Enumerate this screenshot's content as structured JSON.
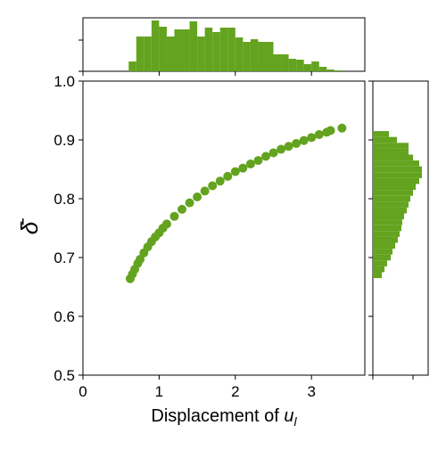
{
  "chart_data": [
    {
      "type": "scatter",
      "color": "#63a31f",
      "xlabel": "Displacement of ",
      "xlabel_var": "u",
      "xlabel_sub": "l",
      "ylabel": "δ̄",
      "x": [
        0.62,
        0.65,
        0.68,
        0.72,
        0.75,
        0.8,
        0.85,
        0.9,
        0.95,
        1.0,
        1.05,
        1.1,
        1.2,
        1.3,
        1.4,
        1.5,
        1.6,
        1.7,
        1.8,
        1.9,
        2.0,
        2.1,
        2.2,
        2.3,
        2.4,
        2.5,
        2.6,
        2.7,
        2.8,
        2.9,
        3.0,
        3.1,
        3.2,
        3.25,
        3.4
      ],
      "y": [
        0.664,
        0.672,
        0.68,
        0.69,
        0.697,
        0.708,
        0.718,
        0.727,
        0.735,
        0.742,
        0.75,
        0.757,
        0.77,
        0.782,
        0.793,
        0.803,
        0.813,
        0.822,
        0.83,
        0.838,
        0.846,
        0.852,
        0.859,
        0.865,
        0.872,
        0.878,
        0.884,
        0.889,
        0.894,
        0.899,
        0.904,
        0.909,
        0.913,
        0.916,
        0.92
      ],
      "xlim": [
        0,
        3.7
      ],
      "xticks": [
        0,
        1,
        2,
        3
      ],
      "ylim": [
        0.5,
        1.0
      ],
      "yticks": [
        0.5,
        0.6,
        0.7,
        0.8,
        0.9,
        {
          "value": 1.0,
          "label": "1.0"
        }
      ]
    },
    {
      "type": "histogram",
      "orientation": "vertical",
      "color": "#63a31f",
      "bins": [
        0.6,
        0.7,
        0.8,
        0.9,
        1.0,
        1.1,
        1.2,
        1.3,
        1.4,
        1.5,
        1.6,
        1.7,
        1.8,
        1.9,
        2.0,
        2.1,
        2.2,
        2.3,
        2.4,
        2.5,
        2.6,
        2.7,
        2.8,
        2.9,
        3.0,
        3.1,
        3.2,
        3.3,
        3.4
      ],
      "counts": [
        11,
        39,
        39,
        57,
        50,
        39,
        47,
        47,
        56,
        39,
        49,
        44,
        49,
        49,
        38,
        33,
        36,
        33,
        33,
        19,
        19,
        14,
        13,
        8,
        11,
        5,
        2,
        1
      ],
      "ylim": [
        0,
        60
      ],
      "yticks": [
        0,
        35
      ]
    },
    {
      "type": "histogram",
      "orientation": "horizontal",
      "color": "#63a31f",
      "bins": [
        0.665,
        0.675,
        0.685,
        0.695,
        0.705,
        0.715,
        0.725,
        0.735,
        0.745,
        0.755,
        0.765,
        0.775,
        0.785,
        0.795,
        0.805,
        0.815,
        0.825,
        0.835,
        0.845,
        0.855,
        0.865,
        0.875,
        0.885,
        0.895,
        0.905,
        0.915
      ],
      "counts": [
        10,
        13,
        16,
        20,
        22,
        25,
        28,
        30,
        32,
        33,
        35,
        38,
        40,
        42,
        45,
        48,
        52,
        55,
        55,
        52,
        45,
        40,
        40,
        27,
        18
      ],
      "xlim": [
        0,
        62
      ],
      "xticks": [
        0,
        45
      ]
    }
  ]
}
